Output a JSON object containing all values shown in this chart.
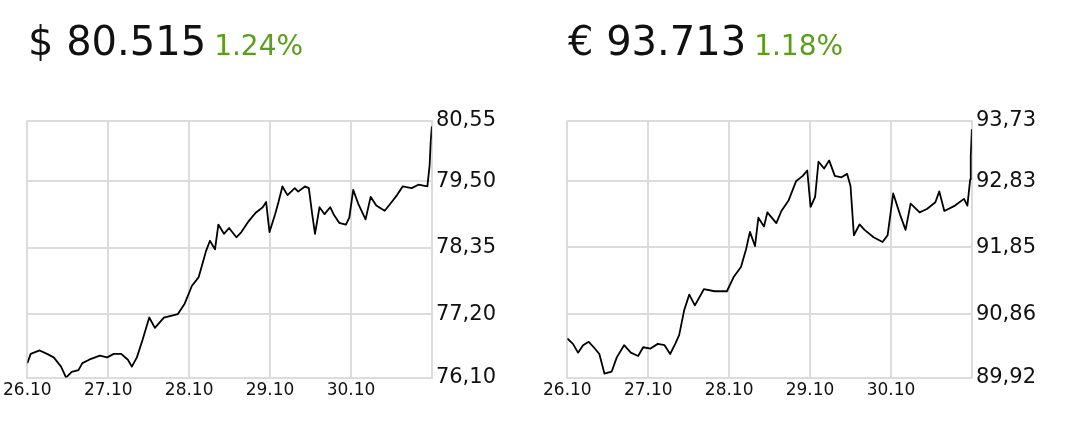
{
  "chart_data": [
    {
      "type": "line",
      "title": "$ 80.515",
      "subtitle": "1.24%",
      "xlim": [
        "--10-26",
        "--10-31"
      ],
      "ylim": [
        76.1,
        80.55
      ],
      "xticks": [
        {
          "value": "--10-26",
          "label": "26.10"
        },
        {
          "value": "--10-27",
          "label": "27.10"
        },
        {
          "value": "--10-28",
          "label": "28.10"
        },
        {
          "value": "--10-29",
          "label": "29.10"
        },
        {
          "value": "--10-30",
          "label": "30.10"
        }
      ],
      "yticks": [
        {
          "value": 76.1,
          "label": "76,10"
        },
        {
          "value": 77.2,
          "label": "77,20"
        },
        {
          "value": 78.35,
          "label": "78,35"
        },
        {
          "value": 79.5,
          "label": "79,50"
        },
        {
          "value": 80.55,
          "label": "80,55"
        }
      ],
      "grid": true,
      "legend": false,
      "marker": "none",
      "series": [
        {
          "color": "#000000",
          "x": [
            "--10-26T00:00",
            "--10-26T01:00",
            "--10-26T03:40",
            "--10-26T05:50",
            "--10-26T07:50",
            "--10-26T10:00",
            "--10-26T11:30",
            "--10-26T13:10",
            "--10-26T15:10",
            "--10-26T16:20",
            "--10-26T18:20",
            "--10-26T21:30",
            "--10-26T23:40",
            "--10-27T01:40",
            "--10-27T03:50",
            "--10-27T05:50",
            "--10-27T07:00",
            "--10-27T08:30",
            "--10-27T10:10",
            "--10-27T12:10",
            "--10-27T13:50",
            "--10-27T16:30",
            "--10-27T20:40",
            "--10-27T22:40",
            "--10-28T00:50",
            "--10-28T02:50",
            "--10-28T05:00",
            "--10-28T06:10",
            "--10-28T07:40",
            "--10-28T08:40",
            "--10-28T10:20",
            "--10-28T11:50",
            "--10-28T14:00",
            "--10-28T15:30",
            "--10-28T17:40",
            "--10-28T19:50",
            "--10-28T21:50",
            "--10-28T22:50",
            "--10-28T23:50",
            "--10-29T01:30",
            "--10-29T02:30",
            "--10-29T03:40",
            "--10-29T05:10",
            "--10-29T07:20",
            "--10-29T08:20",
            "--10-29T10:20",
            "--10-29T11:30",
            "--10-29T12:30",
            "--10-29T13:20",
            "--10-29T14:40",
            "--10-29T16:10",
            "--10-29T17:50",
            "--10-29T18:50",
            "--10-29T20:30",
            "--10-29T22:30",
            "--10-29T23:30",
            "--10-30T00:40",
            "--10-30T02:10",
            "--10-30T04:20",
            "--10-30T05:50",
            "--10-30T07:30",
            "--10-30T10:00",
            "--10-30T11:40",
            "--10-30T13:40",
            "--10-30T15:20",
            "--10-30T18:00",
            "--10-30T20:00",
            "--10-30T22:40",
            "--10-30T23:20",
            "--10-30T23:40",
            "--10-31T00:00"
          ],
          "values": [
            76.35,
            76.51,
            76.57,
            76.51,
            76.45,
            76.29,
            76.1,
            76.2,
            76.23,
            76.35,
            76.41,
            76.48,
            76.45,
            76.51,
            76.51,
            76.41,
            76.29,
            76.45,
            76.75,
            77.14,
            76.96,
            77.14,
            77.2,
            77.38,
            77.69,
            77.84,
            78.29,
            78.47,
            78.32,
            78.75,
            78.59,
            78.69,
            78.53,
            78.62,
            78.81,
            78.96,
            79.05,
            79.14,
            78.62,
            78.93,
            79.14,
            79.41,
            79.26,
            79.38,
            79.32,
            79.41,
            79.38,
            78.93,
            78.59,
            79.05,
            78.93,
            79.05,
            78.93,
            78.78,
            78.75,
            78.87,
            79.35,
            79.11,
            78.84,
            79.23,
            79.08,
            78.99,
            79.11,
            79.26,
            79.41,
            79.38,
            79.44,
            79.41,
            79.78,
            80.2,
            80.45
          ]
        }
      ]
    },
    {
      "type": "line",
      "title": "€ 93.713",
      "subtitle": "1.18%",
      "xlim": [
        "--10-26",
        "--10-31"
      ],
      "ylim": [
        89.92,
        93.73
      ],
      "xticks": [
        {
          "value": "--10-26",
          "label": "26.10"
        },
        {
          "value": "--10-27",
          "label": "27.10"
        },
        {
          "value": "--10-28",
          "label": "28.10"
        },
        {
          "value": "--10-29",
          "label": "29.10"
        },
        {
          "value": "--10-30",
          "label": "30.10"
        }
      ],
      "yticks": [
        {
          "value": 89.92,
          "label": "89,92"
        },
        {
          "value": 90.86,
          "label": "90,86"
        },
        {
          "value": 91.85,
          "label": "91,85"
        },
        {
          "value": 92.83,
          "label": "92,83"
        },
        {
          "value": 93.73,
          "label": "93,73"
        }
      ],
      "grid": true,
      "legend": false,
      "marker": "none",
      "series": [
        {
          "color": "#000000",
          "x": [
            "--10-26T00:00",
            "--10-26T01:40",
            "--10-26T03:10",
            "--10-26T04:40",
            "--10-26T06:20",
            "--10-26T07:50",
            "--10-26T09:30",
            "--10-26T11:00",
            "--10-26T13:10",
            "--10-26T14:40",
            "--10-26T16:50",
            "--10-26T18:50",
            "--10-26T21:00",
            "--10-26T22:30",
            "--10-27T00:40",
            "--10-27T02:50",
            "--10-27T04:50",
            "--10-27T06:30",
            "--10-27T08:00",
            "--10-27T09:10",
            "--10-27T10:40",
            "--10-27T12:10",
            "--10-27T13:50",
            "--10-27T16:30",
            "--10-27T19:40",
            "--10-27T23:20",
            "--10-28T01:20",
            "--10-28T03:30",
            "--10-28T05:00",
            "--10-28T06:10",
            "--10-28T07:40",
            "--10-28T08:40",
            "--10-28T10:20",
            "--10-28T11:20",
            "--10-28T14:00",
            "--10-28T15:30",
            "--10-28T17:40",
            "--10-28T19:50",
            "--10-28T21:50",
            "--10-28T23:10",
            "--10-29T00:10",
            "--10-29T01:30",
            "--10-29T02:30",
            "--10-29T04:10",
            "--10-29T05:40",
            "--10-29T07:20",
            "--10-29T09:20",
            "--10-29T11:00",
            "--10-29T12:00",
            "--10-29T13:00",
            "--10-29T14:40",
            "--10-29T16:10",
            "--10-29T18:50",
            "--10-29T21:30",
            "--10-29T23:00",
            "--10-30T00:40",
            "--10-30T02:40",
            "--10-30T04:20",
            "--10-30T05:50",
            "--10-30T08:30",
            "--10-30T10:40",
            "--10-30T13:10",
            "--10-30T14:20",
            "--10-30T15:50",
            "--10-30T19:00",
            "--10-30T21:40",
            "--10-30T22:40",
            "--10-30T23:30",
            "--10-30T23:40",
            "--10-31T00:00"
          ],
          "values": [
            90.5,
            90.42,
            90.29,
            90.4,
            90.45,
            90.37,
            90.27,
            89.98,
            90.01,
            90.22,
            90.4,
            90.29,
            90.24,
            90.37,
            90.35,
            90.42,
            90.4,
            90.27,
            90.42,
            90.55,
            90.92,
            91.15,
            90.99,
            91.23,
            91.2,
            91.2,
            91.41,
            91.56,
            91.82,
            92.08,
            91.87,
            92.29,
            92.16,
            92.37,
            92.21,
            92.39,
            92.55,
            92.83,
            92.91,
            92.99,
            92.45,
            92.6,
            93.12,
            93.02,
            93.14,
            92.91,
            92.89,
            92.94,
            92.76,
            92.03,
            92.19,
            92.11,
            92.0,
            91.93,
            92.03,
            92.65,
            92.34,
            92.11,
            92.5,
            92.37,
            92.42,
            92.52,
            92.68,
            92.39,
            92.47,
            92.57,
            92.47,
            92.86,
            93.2,
            93.6
          ]
        }
      ]
    }
  ]
}
